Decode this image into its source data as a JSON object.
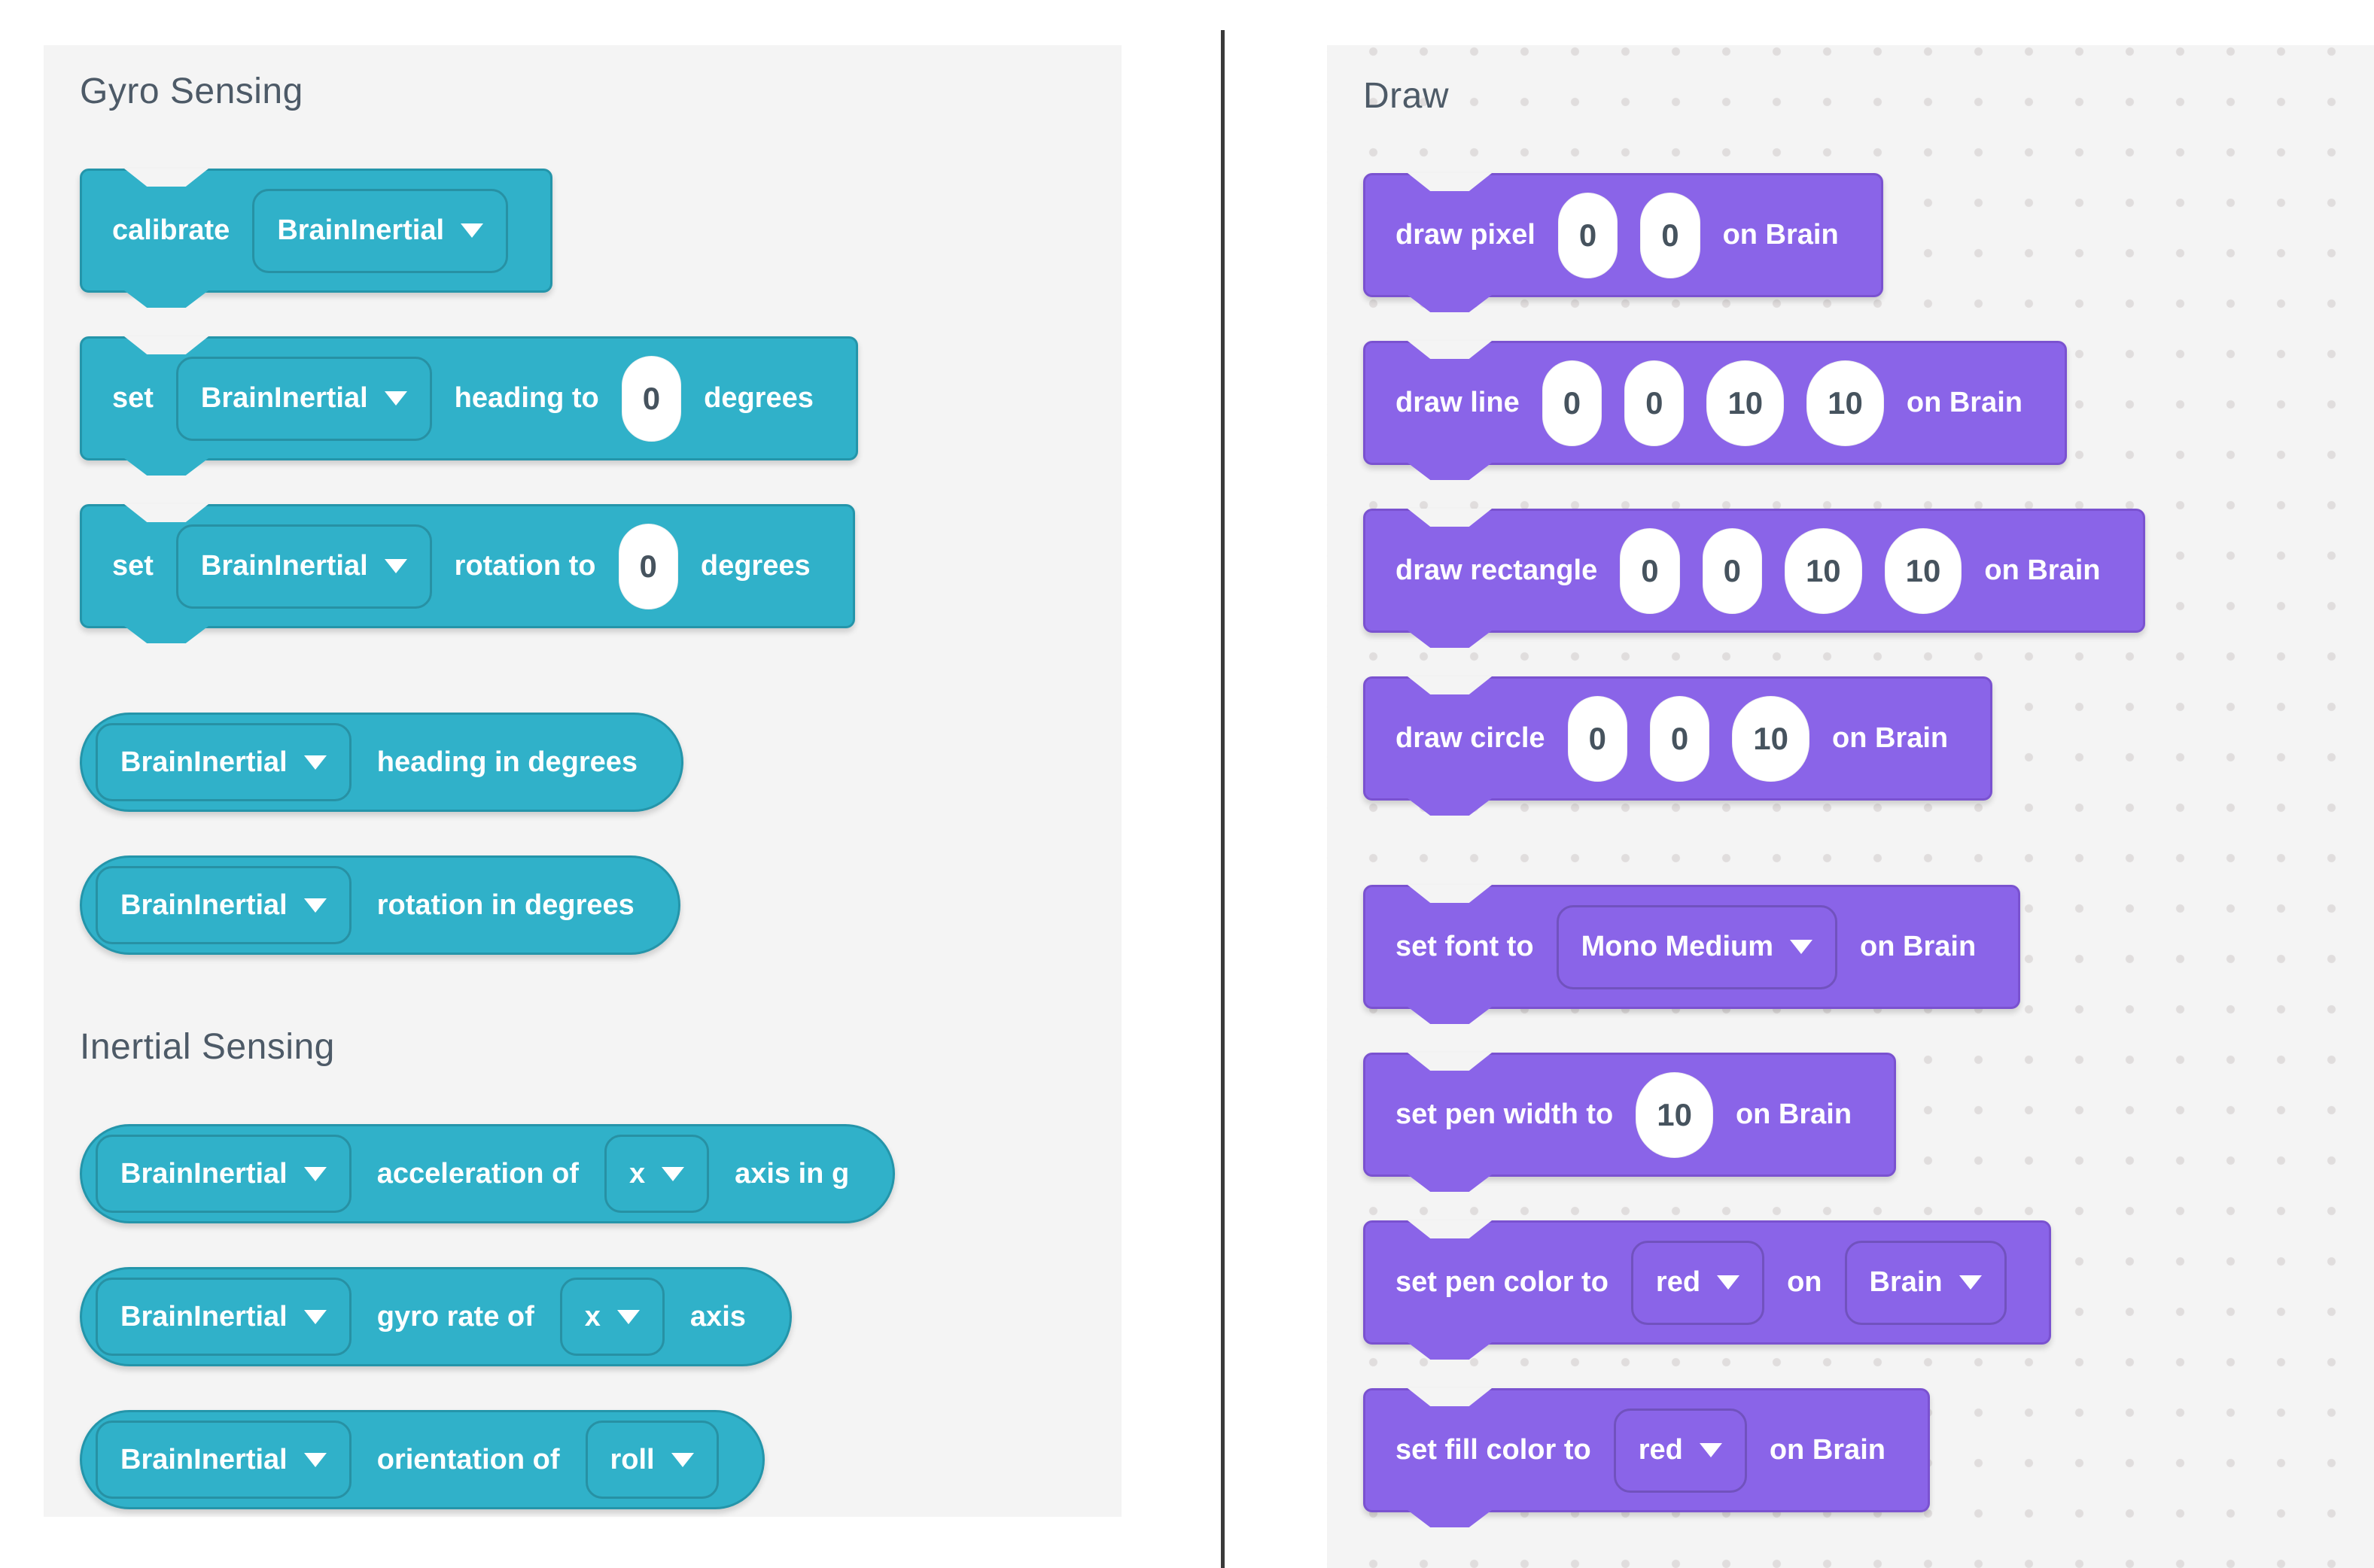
{
  "colors": {
    "teal": "#30b1c9",
    "teal_border": "#2495aa",
    "purple": "#8a64e8",
    "purple_border": "#7a52d0",
    "panel_bg": "#f4f4f4",
    "dot": "#e0dddd",
    "header_text": "#4d5a67",
    "value_text": "#46535e",
    "divider": "#3a3a3a"
  },
  "left_panel": {
    "sections": [
      {
        "title": "Gyro Sensing",
        "groups": [
          {
            "blocks": [
              {
                "shape": "stack",
                "color": "teal",
                "parts": [
                  {
                    "t": "label",
                    "v": "calibrate"
                  },
                  {
                    "t": "dropdown",
                    "v": "BrainInertial"
                  }
                ]
              },
              {
                "shape": "stack",
                "color": "teal",
                "parts": [
                  {
                    "t": "label",
                    "v": "set"
                  },
                  {
                    "t": "dropdown",
                    "v": "BrainInertial"
                  },
                  {
                    "t": "label",
                    "v": "heading to"
                  },
                  {
                    "t": "input",
                    "v": "0"
                  },
                  {
                    "t": "label",
                    "v": "degrees"
                  }
                ]
              },
              {
                "shape": "stack",
                "color": "teal",
                "parts": [
                  {
                    "t": "label",
                    "v": "set"
                  },
                  {
                    "t": "dropdown",
                    "v": "BrainInertial"
                  },
                  {
                    "t": "label",
                    "v": "rotation to"
                  },
                  {
                    "t": "input",
                    "v": "0"
                  },
                  {
                    "t": "label",
                    "v": "degrees"
                  }
                ]
              }
            ]
          },
          {
            "blocks": [
              {
                "shape": "reporter",
                "color": "teal",
                "parts": [
                  {
                    "t": "dropdown",
                    "v": "BrainInertial"
                  },
                  {
                    "t": "label",
                    "v": "heading in degrees"
                  }
                ]
              },
              {
                "shape": "reporter",
                "color": "teal",
                "parts": [
                  {
                    "t": "dropdown",
                    "v": "BrainInertial"
                  },
                  {
                    "t": "label",
                    "v": "rotation in degrees"
                  }
                ]
              }
            ]
          }
        ]
      },
      {
        "title": "Inertial Sensing",
        "groups": [
          {
            "blocks": [
              {
                "shape": "reporter",
                "color": "teal",
                "parts": [
                  {
                    "t": "dropdown",
                    "v": "BrainInertial"
                  },
                  {
                    "t": "label",
                    "v": "acceleration of"
                  },
                  {
                    "t": "dropdown",
                    "v": "x"
                  },
                  {
                    "t": "label",
                    "v": "axis in g"
                  }
                ]
              },
              {
                "shape": "reporter",
                "color": "teal",
                "parts": [
                  {
                    "t": "dropdown",
                    "v": "BrainInertial"
                  },
                  {
                    "t": "label",
                    "v": "gyro rate of"
                  },
                  {
                    "t": "dropdown",
                    "v": "x"
                  },
                  {
                    "t": "label",
                    "v": "axis"
                  }
                ]
              },
              {
                "shape": "reporter",
                "color": "teal",
                "parts": [
                  {
                    "t": "dropdown",
                    "v": "BrainInertial"
                  },
                  {
                    "t": "label",
                    "v": "orientation of"
                  },
                  {
                    "t": "dropdown",
                    "v": "roll"
                  }
                ]
              }
            ]
          }
        ]
      }
    ]
  },
  "right_panel": {
    "sections": [
      {
        "title": "Draw",
        "groups": [
          {
            "blocks": [
              {
                "shape": "stack",
                "color": "purple",
                "parts": [
                  {
                    "t": "label",
                    "v": "draw pixel"
                  },
                  {
                    "t": "input",
                    "v": "0"
                  },
                  {
                    "t": "input",
                    "v": "0"
                  },
                  {
                    "t": "label",
                    "v": "on Brain"
                  }
                ]
              },
              {
                "shape": "stack",
                "color": "purple",
                "parts": [
                  {
                    "t": "label",
                    "v": "draw line"
                  },
                  {
                    "t": "input",
                    "v": "0"
                  },
                  {
                    "t": "input",
                    "v": "0"
                  },
                  {
                    "t": "input",
                    "v": "10"
                  },
                  {
                    "t": "input",
                    "v": "10"
                  },
                  {
                    "t": "label",
                    "v": "on Brain"
                  }
                ]
              },
              {
                "shape": "stack",
                "color": "purple",
                "parts": [
                  {
                    "t": "label",
                    "v": "draw rectangle"
                  },
                  {
                    "t": "input",
                    "v": "0"
                  },
                  {
                    "t": "input",
                    "v": "0"
                  },
                  {
                    "t": "input",
                    "v": "10"
                  },
                  {
                    "t": "input",
                    "v": "10"
                  },
                  {
                    "t": "label",
                    "v": "on Brain"
                  }
                ]
              },
              {
                "shape": "stack",
                "color": "purple",
                "parts": [
                  {
                    "t": "label",
                    "v": "draw circle"
                  },
                  {
                    "t": "input",
                    "v": "0"
                  },
                  {
                    "t": "input",
                    "v": "0"
                  },
                  {
                    "t": "input",
                    "v": "10"
                  },
                  {
                    "t": "label",
                    "v": "on Brain"
                  }
                ]
              }
            ]
          },
          {
            "blocks": [
              {
                "shape": "stack",
                "color": "purple",
                "parts": [
                  {
                    "t": "label",
                    "v": "set font to"
                  },
                  {
                    "t": "dropdown",
                    "v": "Mono Medium"
                  },
                  {
                    "t": "label",
                    "v": "on Brain"
                  }
                ]
              },
              {
                "shape": "stack",
                "color": "purple",
                "parts": [
                  {
                    "t": "label",
                    "v": "set pen width to"
                  },
                  {
                    "t": "input",
                    "v": "10"
                  },
                  {
                    "t": "label",
                    "v": "on Brain"
                  }
                ]
              },
              {
                "shape": "stack",
                "color": "purple",
                "parts": [
                  {
                    "t": "label",
                    "v": "set pen color to"
                  },
                  {
                    "t": "dropdown",
                    "v": "red"
                  },
                  {
                    "t": "label",
                    "v": "on"
                  },
                  {
                    "t": "dropdown",
                    "v": "Brain"
                  }
                ]
              },
              {
                "shape": "stack",
                "color": "purple",
                "parts": [
                  {
                    "t": "label",
                    "v": "set fill color to"
                  },
                  {
                    "t": "dropdown",
                    "v": "red"
                  },
                  {
                    "t": "label",
                    "v": "on Brain"
                  }
                ]
              }
            ]
          }
        ]
      }
    ]
  }
}
